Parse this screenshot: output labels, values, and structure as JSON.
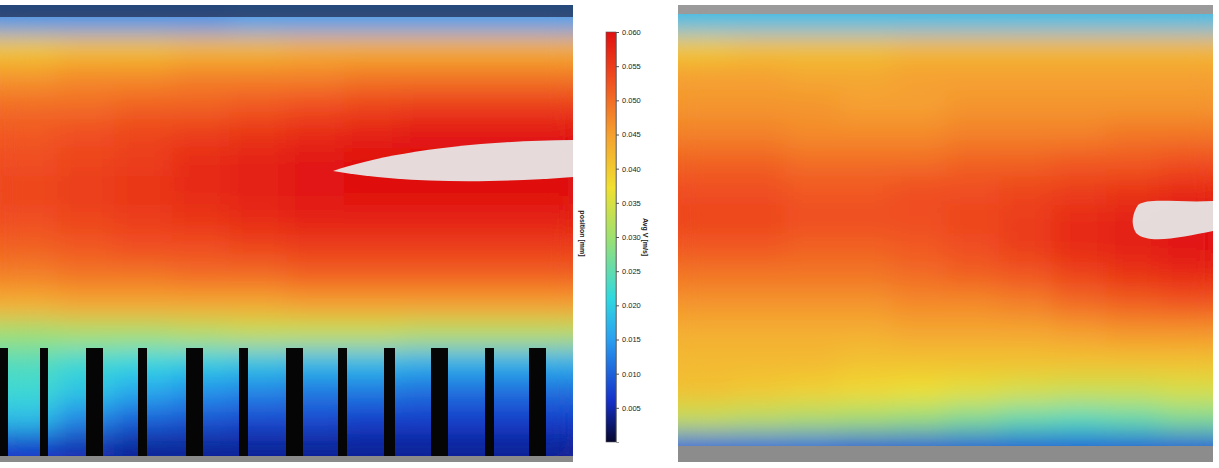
{
  "chart_data": [
    {
      "type": "heatmap",
      "tick_labels": false,
      "y_label": "position [mm]",
      "colorbar": {
        "label": "Avg V [m/s]",
        "range": [
          0,
          0.06
        ],
        "ticks": [
          {
            "value": 0.06,
            "label": "0.060"
          },
          0.055,
          {
            "value": 0.05,
            "label": "0.050"
          },
          0.045,
          {
            "value": 0.04,
            "label": "0.040"
          },
          0.035,
          {
            "value": 0.03,
            "label": "0.030"
          },
          0.025,
          {
            "value": 0.02,
            "label": "0.020"
          },
          0.015,
          {
            "value": 0.01,
            "label": "0.010"
          },
          0.005
        ]
      },
      "cells": [
        [
          0.014,
          0.014,
          0.014,
          0.014,
          0.015,
          0.015,
          0.015,
          0.015,
          0.015,
          0.015
        ],
        [
          0.04,
          0.041,
          0.041,
          0.042,
          0.042,
          0.043,
          0.043,
          0.043,
          0.043,
          0.043
        ],
        [
          0.046,
          0.047,
          0.047,
          0.048,
          0.048,
          0.048,
          0.049,
          0.049,
          0.049,
          0.049
        ],
        [
          0.05,
          0.05,
          0.051,
          0.051,
          0.052,
          0.053,
          0.054,
          0.055,
          0.055,
          0.055
        ],
        [
          0.052,
          0.053,
          0.054,
          0.055,
          0.056,
          0.057,
          0.058,
          0.059,
          0.059,
          0.059
        ],
        [
          0.053,
          0.054,
          0.055,
          0.057,
          0.058,
          0.059,
          0.06,
          0.06,
          0.06,
          0.06
        ],
        [
          0.054,
          0.055,
          0.056,
          0.057,
          0.058,
          0.059,
          0.06,
          0.06,
          0.06,
          0.06
        ],
        [
          0.053,
          0.054,
          0.055,
          0.056,
          0.057,
          0.058,
          0.058,
          0.058,
          0.058,
          0.058
        ],
        [
          0.051,
          0.052,
          0.053,
          0.053,
          0.054,
          0.055,
          0.055,
          0.055,
          0.055,
          0.055
        ],
        [
          0.048,
          0.049,
          0.049,
          0.05,
          0.05,
          0.051,
          0.051,
          0.051,
          0.051,
          0.051
        ],
        [
          0.043,
          0.044,
          0.044,
          0.044,
          0.044,
          0.045,
          0.045,
          0.045,
          0.045,
          0.045
        ],
        [
          0.03,
          0.031,
          0.031,
          0.032,
          0.033,
          0.033,
          0.033,
          0.032,
          0.032,
          0.032
        ],
        [
          0.024,
          0.022,
          0.021,
          0.02,
          0.019,
          0.018,
          0.018,
          0.017,
          0.017,
          0.017
        ],
        [
          0.022,
          0.019,
          0.016,
          0.014,
          0.013,
          0.012,
          0.012,
          0.011,
          0.011,
          0.011
        ],
        [
          0.018,
          0.013,
          0.01,
          0.009,
          0.008,
          0.008,
          0.007,
          0.007,
          0.007,
          0.007
        ],
        [
          0.006,
          0.005,
          0.004,
          0.004,
          0.004,
          0.004,
          0.004,
          0.004,
          0.004,
          0.004
        ]
      ]
    },
    {
      "type": "heatmap",
      "tick_labels": false,
      "cells": [
        [
          0.018,
          0.018,
          0.018,
          0.018,
          0.018,
          0.018,
          0.018,
          0.018,
          0.018,
          0.018
        ],
        [
          0.04,
          0.041,
          0.041,
          0.041,
          0.042,
          0.042,
          0.042,
          0.042,
          0.042,
          0.042
        ],
        [
          0.045,
          0.045,
          0.044,
          0.044,
          0.045,
          0.045,
          0.045,
          0.045,
          0.045,
          0.045
        ],
        [
          0.046,
          0.046,
          0.046,
          0.045,
          0.045,
          0.046,
          0.046,
          0.046,
          0.046,
          0.046
        ],
        [
          0.048,
          0.048,
          0.047,
          0.047,
          0.047,
          0.048,
          0.048,
          0.048,
          0.049,
          0.049
        ],
        [
          0.051,
          0.051,
          0.05,
          0.05,
          0.05,
          0.051,
          0.051,
          0.052,
          0.052,
          0.053
        ],
        [
          0.053,
          0.053,
          0.052,
          0.052,
          0.053,
          0.053,
          0.054,
          0.055,
          0.056,
          0.057
        ],
        [
          0.054,
          0.054,
          0.053,
          0.053,
          0.053,
          0.054,
          0.055,
          0.057,
          0.058,
          0.059
        ],
        [
          0.052,
          0.052,
          0.051,
          0.051,
          0.052,
          0.053,
          0.055,
          0.057,
          0.058,
          0.059
        ],
        [
          0.049,
          0.049,
          0.049,
          0.049,
          0.05,
          0.051,
          0.052,
          0.054,
          0.056,
          0.057
        ],
        [
          0.046,
          0.046,
          0.046,
          0.046,
          0.047,
          0.047,
          0.048,
          0.05,
          0.051,
          0.052
        ],
        [
          0.043,
          0.043,
          0.043,
          0.043,
          0.044,
          0.044,
          0.044,
          0.045,
          0.046,
          0.046
        ],
        [
          0.042,
          0.042,
          0.042,
          0.041,
          0.041,
          0.041,
          0.041,
          0.041,
          0.041,
          0.041
        ],
        [
          0.041,
          0.04,
          0.039,
          0.038,
          0.037,
          0.036,
          0.035,
          0.034,
          0.034,
          0.035
        ],
        [
          0.033,
          0.032,
          0.031,
          0.03,
          0.029,
          0.027,
          0.025,
          0.024,
          0.025,
          0.027
        ],
        [
          0.01,
          0.01,
          0.01,
          0.009,
          0.009,
          0.009,
          0.009,
          0.009,
          0.009,
          0.009
        ]
      ]
    }
  ]
}
